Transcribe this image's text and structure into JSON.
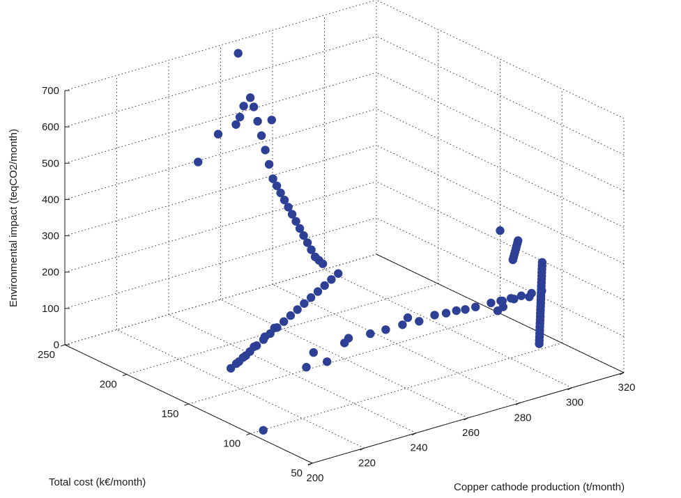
{
  "chart_data": {
    "type": "scatter",
    "title": "",
    "xlabel": "Copper cathode production (t/month)",
    "ylabel": "Total cost (k€/month)",
    "zlabel": "Environmental impact (teqCO2/month)",
    "xlim": [
      200,
      320
    ],
    "ylim": [
      50,
      250
    ],
    "zlim": [
      0,
      700
    ],
    "xticks": [
      "200",
      "220",
      "240",
      "260",
      "280",
      "300",
      "320"
    ],
    "yticks": [
      "50",
      "100",
      "150",
      "200",
      "250"
    ],
    "zticks": [
      "0",
      "100",
      "200",
      "300",
      "400",
      "500",
      "600",
      "700"
    ],
    "grid": true,
    "legend": "none",
    "marker_color": "#2e3f96",
    "series": [
      {
        "points": [
          [
            296,
            68,
            100
          ],
          [
            297,
            70,
            104
          ],
          [
            298,
            72,
            108
          ],
          [
            299,
            74,
            112
          ],
          [
            300,
            76,
            116
          ],
          [
            301,
            78,
            120
          ],
          [
            302,
            80,
            124
          ],
          [
            303,
            82,
            128
          ],
          [
            304,
            84,
            132
          ],
          [
            305,
            86,
            136
          ],
          [
            306,
            88,
            140
          ],
          [
            307,
            90,
            144
          ],
          [
            308,
            92,
            148
          ],
          [
            309,
            94,
            152
          ],
          [
            310,
            96,
            156
          ],
          [
            311,
            98,
            160
          ],
          [
            312,
            100,
            164
          ],
          [
            313,
            102,
            168
          ],
          [
            314,
            104,
            172
          ],
          [
            315,
            106,
            176
          ],
          [
            316,
            108,
            180
          ],
          [
            317,
            110,
            184
          ],
          [
            318,
            112,
            188
          ],
          [
            319,
            114,
            192
          ],
          [
            320,
            116,
            196
          ],
          [
            313,
            125,
            203
          ],
          [
            314,
            126.5,
            206
          ],
          [
            315,
            128,
            209
          ],
          [
            316,
            129.5,
            212
          ],
          [
            317,
            131,
            215
          ],
          [
            318,
            132.5,
            218
          ],
          [
            319,
            134,
            221
          ],
          [
            320,
            135.5,
            224
          ],
          [
            320,
            150,
            228
          ],
          [
            301,
            241,
            1
          ],
          [
            296,
            236,
            3
          ],
          [
            291,
            231,
            5
          ],
          [
            286,
            226,
            7
          ],
          [
            281,
            221,
            9
          ],
          [
            276,
            216,
            11
          ],
          [
            271,
            211,
            13
          ],
          [
            266,
            206,
            15
          ],
          [
            261,
            201,
            17
          ],
          [
            256,
            196,
            19
          ],
          [
            251,
            191,
            21
          ],
          [
            246,
            186,
            23
          ],
          [
            241,
            181,
            25
          ],
          [
            236,
            176,
            27
          ],
          [
            231,
            171,
            29
          ],
          [
            226,
            166,
            31
          ],
          [
            222,
            162,
            33
          ],
          [
            255,
            196,
            20
          ],
          [
            248,
            189,
            22
          ],
          [
            240,
            181,
            24
          ],
          [
            233,
            173,
            27
          ],
          [
            228,
            168,
            29
          ],
          [
            204,
            98,
            4
          ],
          [
            243,
            145,
            20
          ],
          [
            250,
            143,
            24
          ],
          [
            251,
            156,
            26
          ],
          [
            261,
            152,
            38
          ],
          [
            264,
            155,
            40
          ],
          [
            270,
            150,
            48
          ],
          [
            275,
            148,
            52
          ],
          [
            280,
            145,
            60
          ],
          [
            285,
            142,
            64
          ],
          [
            283,
            147,
            70
          ],
          [
            290,
            140,
            74
          ],
          [
            293,
            137,
            78
          ],
          [
            296,
            135,
            82
          ],
          [
            298,
            132,
            86
          ],
          [
            301,
            130,
            90
          ],
          [
            306,
            128,
            94
          ],
          [
            309,
            125,
            98
          ],
          [
            312,
            122,
            102
          ],
          [
            316,
            118,
            106
          ],
          [
            304,
            114,
            110
          ],
          [
            300,
            110,
            114
          ],
          [
            305,
            118,
            118
          ],
          [
            308,
            116,
            122
          ],
          [
            311,
            114,
            126
          ],
          [
            314,
            112,
            130
          ],
          [
            317,
            110,
            134
          ],
          [
            248,
            198,
            640
          ],
          [
            249,
            197,
            600
          ],
          [
            250,
            196,
            560
          ],
          [
            251,
            195,
            520
          ],
          [
            252,
            194,
            480
          ],
          [
            253,
            193,
            440
          ],
          [
            254,
            192,
            420
          ],
          [
            255,
            191,
            400
          ],
          [
            256,
            190,
            380
          ],
          [
            257,
            189,
            360
          ],
          [
            258,
            188,
            340
          ],
          [
            259,
            187,
            320
          ],
          [
            260,
            186,
            300
          ],
          [
            261,
            185,
            280
          ],
          [
            262,
            184,
            260
          ],
          [
            263,
            183,
            240
          ],
          [
            264,
            182,
            220
          ],
          [
            265,
            181,
            210
          ],
          [
            266,
            180,
            200
          ],
          [
            250,
            205,
            650
          ],
          [
            246,
            202,
            640
          ],
          [
            245,
            203,
            610
          ],
          [
            244,
            204,
            590
          ],
          [
            262,
            240,
            690
          ],
          [
            240,
            210,
            562
          ],
          [
            238,
            222,
            470
          ],
          [
            253,
            194,
            600
          ]
        ]
      }
    ]
  }
}
